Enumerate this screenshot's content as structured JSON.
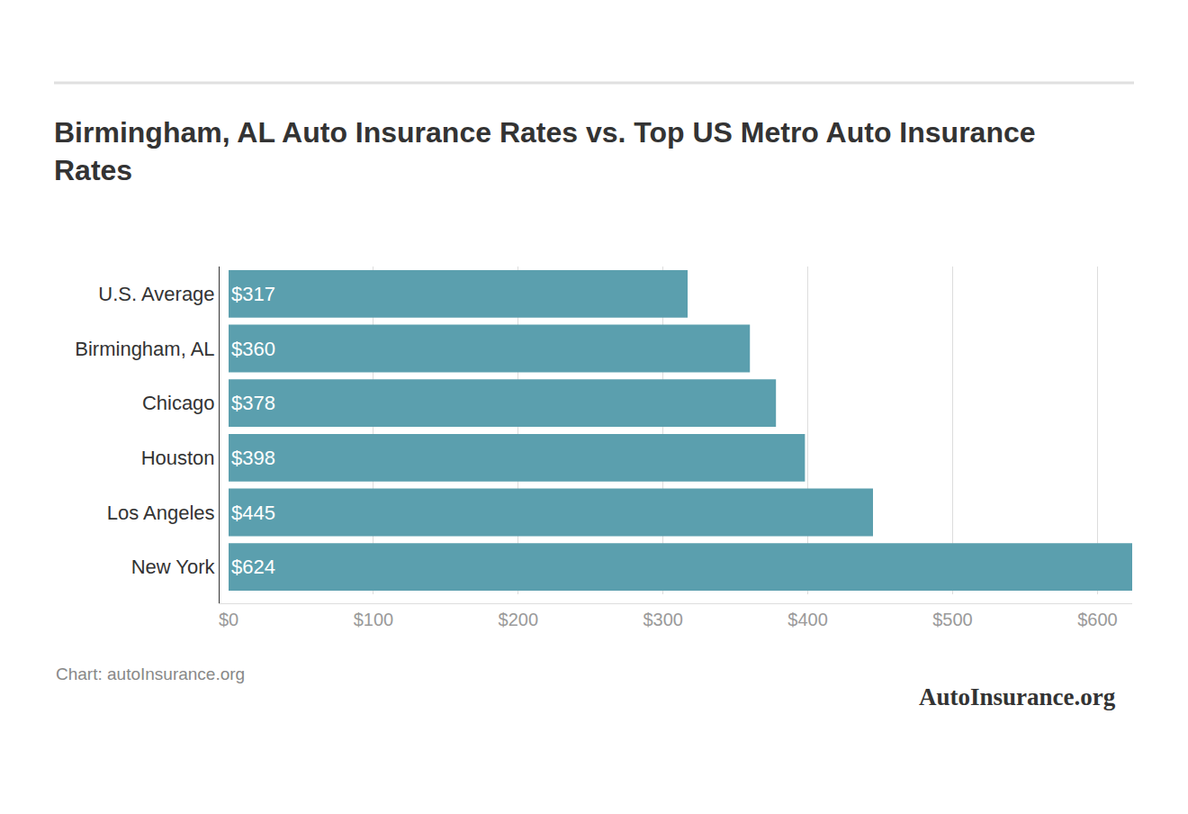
{
  "chart_data": {
    "type": "bar",
    "title": "Birmingham, AL Auto Insurance Rates vs. Top US Metro Auto Insurance Rates",
    "orientation": "horizontal",
    "categories": [
      "U.S. Average",
      "Birmingham, AL",
      "Chicago",
      "Houston",
      "Los Angeles",
      "New York"
    ],
    "values": [
      317,
      360,
      378,
      398,
      445,
      624
    ],
    "value_labels": [
      "$317",
      "$360",
      "$378",
      "$398",
      "$445",
      "$624"
    ],
    "data_labels": true,
    "color": "#5b9fae",
    "xlim": [
      0,
      624
    ],
    "xticks": [
      {
        "value": 0,
        "label": "$0"
      },
      {
        "value": 100,
        "label": "$100"
      },
      {
        "value": 200,
        "label": "$200"
      },
      {
        "value": 300,
        "label": "$300"
      },
      {
        "value": 400,
        "label": "$400"
      },
      {
        "value": 500,
        "label": "$500"
      },
      {
        "value": 600,
        "label": "$600"
      }
    ],
    "grid": true,
    "source": "Chart: autoInsurance.org",
    "watermark": "AutoInsurance.org"
  }
}
